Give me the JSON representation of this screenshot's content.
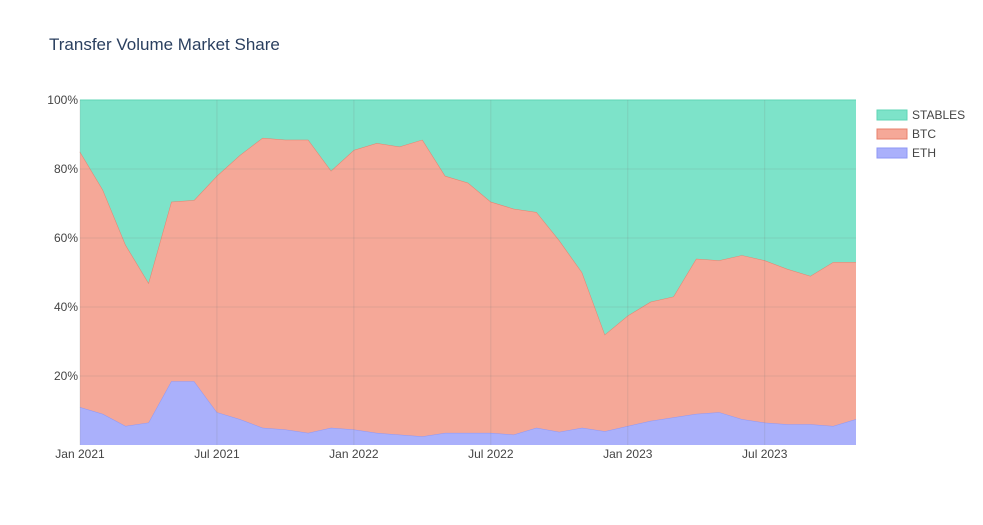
{
  "chart_data": {
    "type": "area",
    "stackmode": "percent",
    "title": "Transfer Volume Market Share",
    "xlabel": "",
    "ylabel": "",
    "ylim": [
      0,
      100
    ],
    "grid": true,
    "legend_position": "top-right",
    "x": [
      "2021-01",
      "2021-02",
      "2021-03",
      "2021-04",
      "2021-05",
      "2021-06",
      "2021-07",
      "2021-08",
      "2021-09",
      "2021-10",
      "2021-11",
      "2021-12",
      "2022-01",
      "2022-02",
      "2022-03",
      "2022-04",
      "2022-05",
      "2022-06",
      "2022-07",
      "2022-08",
      "2022-09",
      "2022-10",
      "2022-11",
      "2022-12",
      "2023-01",
      "2023-02",
      "2023-03",
      "2023-04",
      "2023-05",
      "2023-06",
      "2023-07",
      "2023-08",
      "2023-09",
      "2023-10",
      "2023-11"
    ],
    "x_ticks": [
      "Jan 2021",
      "Jul 2021",
      "Jan 2022",
      "Jul 2022",
      "Jan 2023",
      "Jul 2023"
    ],
    "y_ticks": [
      "20%",
      "40%",
      "60%",
      "80%",
      "100%"
    ],
    "series": [
      {
        "name": "ETH",
        "color": "#aab0fb",
        "line_color": "#8f97f5",
        "values": [
          11,
          9,
          5.5,
          6.5,
          18.5,
          18.5,
          9.5,
          7.5,
          5,
          4.5,
          3.5,
          5,
          4.5,
          3.5,
          3,
          2.5,
          3.5,
          3.5,
          3.5,
          3,
          5,
          3.8,
          5,
          4,
          5.5,
          7,
          8,
          9,
          9.5,
          7.5,
          6.5,
          6,
          6,
          5.5,
          7.5
        ]
      },
      {
        "name": "BTC",
        "color": "#f5a898",
        "line_color": "#e8806c",
        "values": [
          74,
          65,
          52.5,
          40.5,
          52,
          52.5,
          68.5,
          76.5,
          84,
          84,
          85,
          74.5,
          81,
          84,
          83.5,
          86,
          74.5,
          72.5,
          67,
          65.5,
          62.5,
          55.5,
          45,
          28,
          32,
          34.5,
          35,
          45,
          44,
          47.5,
          47,
          45,
          43,
          47.5,
          45.5
        ]
      },
      {
        "name": "STABLES",
        "color": "#7de3c9",
        "line_color": "#5fd4b5",
        "values": [
          15,
          26,
          42,
          53,
          29.5,
          29,
          22,
          16,
          11,
          11.5,
          11.5,
          20.5,
          14.5,
          12.5,
          13.5,
          11.5,
          22,
          24,
          29.5,
          31.5,
          32.5,
          40.7,
          50,
          68,
          62.5,
          58.5,
          57,
          46,
          46.5,
          45,
          46.5,
          49,
          51,
          47,
          47
        ]
      }
    ]
  }
}
